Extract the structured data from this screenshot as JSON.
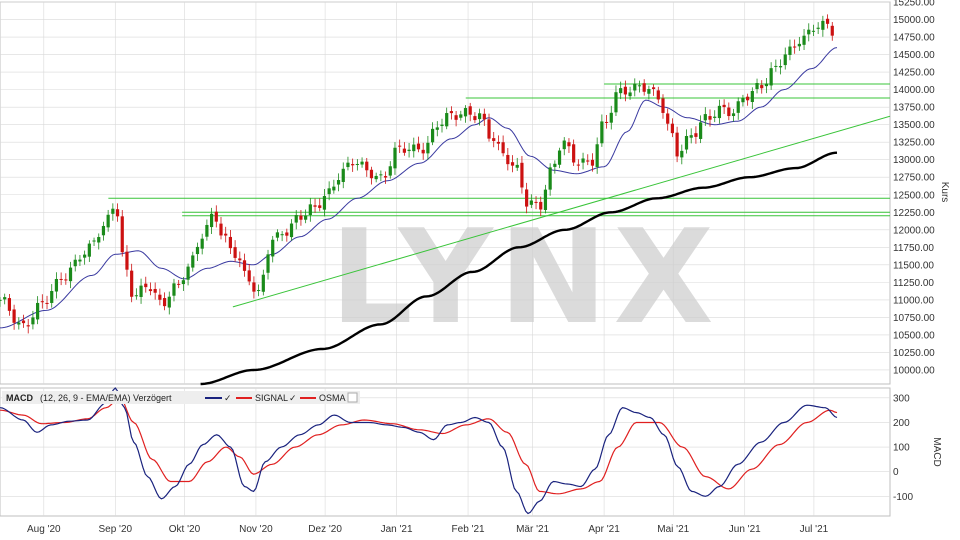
{
  "watermark": "LYNX",
  "colors": {
    "up": "#1a8a1a",
    "down": "#cc1111",
    "ma_short": "#3a3aa0",
    "ma_long": "#000000",
    "support": "#39c439",
    "macd": "#1a237e",
    "signal": "#e02020",
    "grid": "#d9d9d9"
  },
  "chart_data": [
    {
      "type": "candlestick",
      "ylabel": "Kurs",
      "ylim": [
        9800,
        15250
      ],
      "y_ticks": [
        10000,
        10250,
        10500,
        10750,
        11000,
        11250,
        11500,
        11750,
        12000,
        12250,
        12500,
        12750,
        13000,
        13250,
        13500,
        13750,
        14000,
        14250,
        14500,
        14750,
        15000,
        15250
      ],
      "y_tick_labels": [
        "10000.00",
        "10250.00",
        "10500.00",
        "10750.00",
        "11000.00",
        "11250.00",
        "11500.00",
        "11750.00",
        "12000.00",
        "12250.00",
        "12500.00",
        "12750.00",
        "13000.00",
        "13250.00",
        "13500.00",
        "13750.00",
        "14000.00",
        "14250.00",
        "14500.00",
        "14750.00",
        "15000.00",
        "15250.00"
      ],
      "x_tick_labels": [
        "Aug '20",
        "Sep '20",
        "Okt '20",
        "Nov '20",
        "Dez '20",
        "Jan '21",
        "Feb '21",
        "Mär '21",
        "Apr '21",
        "Mai '21",
        "Jun '21",
        "Jul '21"
      ],
      "x_tick_days": [
        19,
        50,
        80,
        111,
        141,
        172,
        203,
        231,
        262,
        292,
        323,
        353
      ],
      "x_range_days": [
        0,
        386
      ],
      "close_anchors": [
        [
          0,
          11000
        ],
        [
          9,
          10600
        ],
        [
          19,
          11000
        ],
        [
          28,
          11300
        ],
        [
          36,
          11700
        ],
        [
          45,
          12000
        ],
        [
          50,
          12350
        ],
        [
          54,
          11500
        ],
        [
          58,
          11100
        ],
        [
          64,
          11200
        ],
        [
          70,
          10900
        ],
        [
          76,
          11200
        ],
        [
          82,
          11500
        ],
        [
          88,
          11900
        ],
        [
          93,
          12200
        ],
        [
          97,
          11900
        ],
        [
          102,
          11700
        ],
        [
          107,
          11300
        ],
        [
          112,
          11050
        ],
        [
          118,
          11900
        ],
        [
          124,
          12000
        ],
        [
          130,
          12150
        ],
        [
          136,
          12300
        ],
        [
          142,
          12550
        ],
        [
          148,
          12800
        ],
        [
          154,
          12950
        ],
        [
          160,
          12850
        ],
        [
          166,
          12750
        ],
        [
          172,
          13100
        ],
        [
          178,
          13150
        ],
        [
          184,
          13200
        ],
        [
          190,
          13500
        ],
        [
          196,
          13600
        ],
        [
          203,
          13700
        ],
        [
          208,
          13650
        ],
        [
          213,
          13300
        ],
        [
          218,
          13050
        ],
        [
          224,
          12900
        ],
        [
          229,
          12400
        ],
        [
          234,
          12300
        ],
        [
          239,
          12800
        ],
        [
          244,
          13300
        ],
        [
          250,
          13000
        ],
        [
          256,
          12900
        ],
        [
          262,
          13500
        ],
        [
          268,
          14000
        ],
        [
          274,
          14000
        ],
        [
          280,
          14000
        ],
        [
          286,
          13900
        ],
        [
          290,
          13500
        ],
        [
          294,
          13100
        ],
        [
          300,
          13300
        ],
        [
          306,
          13600
        ],
        [
          312,
          13750
        ],
        [
          318,
          13650
        ],
        [
          324,
          13900
        ],
        [
          330,
          14100
        ],
        [
          336,
          14300
        ],
        [
          342,
          14500
        ],
        [
          348,
          14750
        ],
        [
          354,
          14950
        ],
        [
          359,
          14900
        ],
        [
          363,
          14700
        ]
      ],
      "ma_short_anchors": [
        [
          0,
          10600
        ],
        [
          20,
          10850
        ],
        [
          40,
          11350
        ],
        [
          50,
          11650
        ],
        [
          60,
          11700
        ],
        [
          70,
          11450
        ],
        [
          80,
          11300
        ],
        [
          90,
          11450
        ],
        [
          100,
          11550
        ],
        [
          110,
          11500
        ],
        [
          118,
          11650
        ],
        [
          130,
          11900
        ],
        [
          142,
          12150
        ],
        [
          155,
          12450
        ],
        [
          168,
          12700
        ],
        [
          182,
          12950
        ],
        [
          196,
          13300
        ],
        [
          206,
          13500
        ],
        [
          212,
          13600
        ],
        [
          220,
          13450
        ],
        [
          230,
          13050
        ],
        [
          240,
          12850
        ],
        [
          250,
          12800
        ],
        [
          262,
          12900
        ],
        [
          272,
          13400
        ],
        [
          280,
          13850
        ],
        [
          288,
          13750
        ],
        [
          298,
          13600
        ],
        [
          310,
          13500
        ],
        [
          320,
          13550
        ],
        [
          330,
          13750
        ],
        [
          340,
          14000
        ],
        [
          352,
          14300
        ],
        [
          363,
          14600
        ]
      ],
      "ma_long_anchors": [
        [
          87,
          9800
        ],
        [
          110,
          10000
        ],
        [
          140,
          10300
        ],
        [
          165,
          10650
        ],
        [
          185,
          11050
        ],
        [
          205,
          11400
        ],
        [
          225,
          11750
        ],
        [
          245,
          12000
        ],
        [
          265,
          12250
        ],
        [
          285,
          12450
        ],
        [
          305,
          12600
        ],
        [
          325,
          12750
        ],
        [
          345,
          12880
        ],
        [
          363,
          13100
        ]
      ],
      "support_lines": [
        {
          "from": [
            47,
            12450
          ],
          "to": [
            386,
            12450
          ]
        },
        {
          "from": [
            79,
            12250
          ],
          "to": [
            386,
            12250
          ]
        },
        {
          "from": [
            79,
            12200
          ],
          "to": [
            386,
            12200
          ]
        },
        {
          "from": [
            202,
            13880
          ],
          "to": [
            386,
            13880
          ]
        },
        {
          "from": [
            262,
            14080
          ],
          "to": [
            386,
            14080
          ]
        }
      ],
      "trend_line": {
        "from": [
          101,
          10900
        ],
        "to": [
          386,
          13620
        ]
      }
    },
    {
      "type": "line",
      "title": "MACD",
      "ylabel": "MACD",
      "legend_text": "(12, 26, 9 - EMA/EMA) Verzögert",
      "legend_series": [
        "SIGNAL",
        "OSMA"
      ],
      "ylim": [
        -180,
        340
      ],
      "y_ticks": [
        300,
        200,
        100,
        0,
        -100
      ],
      "y_tick_labels": [
        "300",
        "200",
        "100",
        "0",
        "-100"
      ],
      "macd_anchors": [
        [
          0,
          260
        ],
        [
          10,
          210
        ],
        [
          16,
          160
        ],
        [
          22,
          190
        ],
        [
          30,
          205
        ],
        [
          38,
          210
        ],
        [
          46,
          280
        ],
        [
          50,
          340
        ],
        [
          54,
          260
        ],
        [
          58,
          120
        ],
        [
          64,
          -20
        ],
        [
          70,
          -110
        ],
        [
          76,
          -60
        ],
        [
          82,
          30
        ],
        [
          88,
          110
        ],
        [
          94,
          150
        ],
        [
          100,
          100
        ],
        [
          106,
          -60
        ],
        [
          110,
          -80
        ],
        [
          115,
          40
        ],
        [
          122,
          100
        ],
        [
          130,
          150
        ],
        [
          138,
          190
        ],
        [
          145,
          230
        ],
        [
          152,
          200
        ],
        [
          160,
          200
        ],
        [
          168,
          190
        ],
        [
          175,
          180
        ],
        [
          182,
          160
        ],
        [
          188,
          130
        ],
        [
          194,
          190
        ],
        [
          200,
          200
        ],
        [
          206,
          220
        ],
        [
          212,
          200
        ],
        [
          218,
          100
        ],
        [
          224,
          -80
        ],
        [
          229,
          -170
        ],
        [
          234,
          -120
        ],
        [
          240,
          -40
        ],
        [
          246,
          -50
        ],
        [
          252,
          -60
        ],
        [
          258,
          10
        ],
        [
          264,
          150
        ],
        [
          270,
          260
        ],
        [
          276,
          240
        ],
        [
          282,
          220
        ],
        [
          288,
          150
        ],
        [
          294,
          20
        ],
        [
          300,
          -80
        ],
        [
          306,
          -100
        ],
        [
          312,
          -60
        ],
        [
          320,
          30
        ],
        [
          330,
          120
        ],
        [
          340,
          200
        ],
        [
          350,
          270
        ],
        [
          358,
          260
        ],
        [
          363,
          220
        ]
      ],
      "signal_anchors": [
        [
          0,
          250
        ],
        [
          10,
          230
        ],
        [
          18,
          195
        ],
        [
          28,
          200
        ],
        [
          38,
          215
        ],
        [
          46,
          260
        ],
        [
          52,
          300
        ],
        [
          58,
          200
        ],
        [
          66,
          50
        ],
        [
          74,
          -40
        ],
        [
          82,
          -40
        ],
        [
          90,
          40
        ],
        [
          98,
          100
        ],
        [
          104,
          60
        ],
        [
          110,
          -10
        ],
        [
          118,
          30
        ],
        [
          128,
          100
        ],
        [
          138,
          150
        ],
        [
          148,
          190
        ],
        [
          158,
          210
        ],
        [
          170,
          195
        ],
        [
          182,
          170
        ],
        [
          192,
          155
        ],
        [
          202,
          190
        ],
        [
          212,
          215
        ],
        [
          220,
          160
        ],
        [
          228,
          30
        ],
        [
          234,
          -80
        ],
        [
          242,
          -90
        ],
        [
          252,
          -70
        ],
        [
          260,
          -40
        ],
        [
          268,
          100
        ],
        [
          276,
          200
        ],
        [
          286,
          200
        ],
        [
          296,
          100
        ],
        [
          306,
          -20
        ],
        [
          316,
          -70
        ],
        [
          326,
          10
        ],
        [
          338,
          110
        ],
        [
          350,
          200
        ],
        [
          360,
          250
        ],
        [
          363,
          240
        ]
      ]
    }
  ]
}
